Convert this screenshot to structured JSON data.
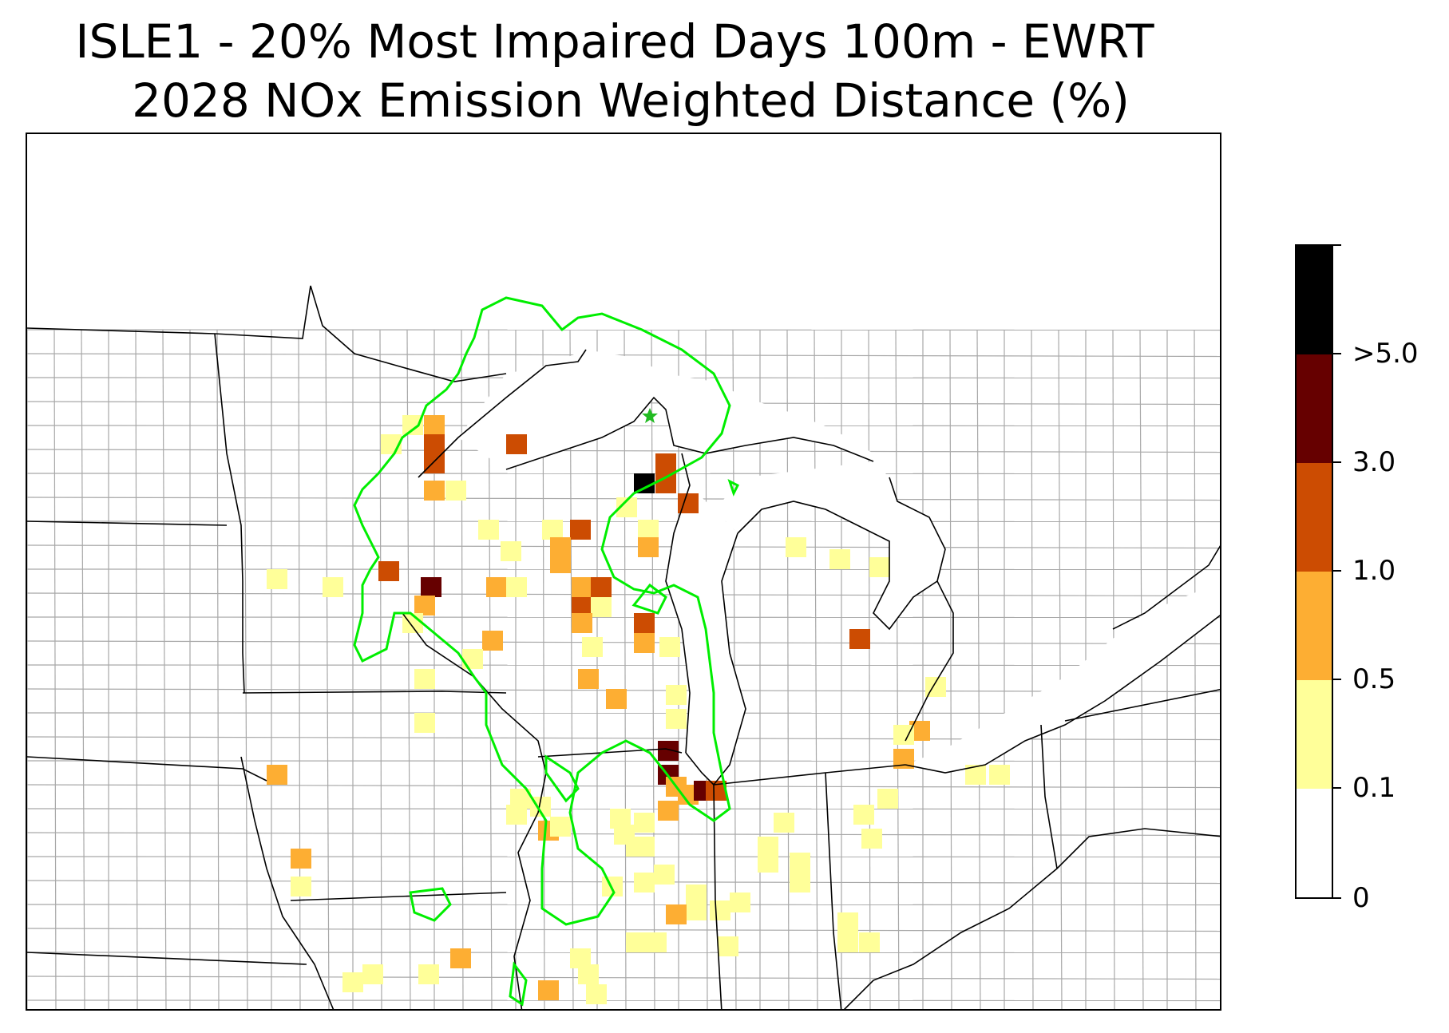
{
  "title_line1": "ISLE1 - 20% Most Impaired Days 100m - EWRT",
  "title_line2": "2028 NOx Emission Weighted Distance (%)",
  "legend": {
    "bins": [
      {
        "range": "0 - 0.1",
        "color": "#ffffff"
      },
      {
        "range": "0.1 - 0.5",
        "color": "#ffff99"
      },
      {
        "range": "0.5 - 1.0",
        "color": "#fdae33"
      },
      {
        "range": "1.0 - 3.0",
        "color": "#cc4c02"
      },
      {
        "range": "3.0 - 5.0",
        "color": "#660000"
      },
      {
        "range": ">5.0",
        "color": "#000000"
      }
    ],
    "tick_labels": [
      "0",
      "0.1",
      "0.5",
      "1.0",
      "3.0",
      ">5.0"
    ]
  },
  "map": {
    "site_marker": "star",
    "site_marker_color": "#22bb22",
    "contour_color": "#00ee00",
    "state_border_color": "#000000",
    "county_border_color": "#a0a0a0"
  }
}
